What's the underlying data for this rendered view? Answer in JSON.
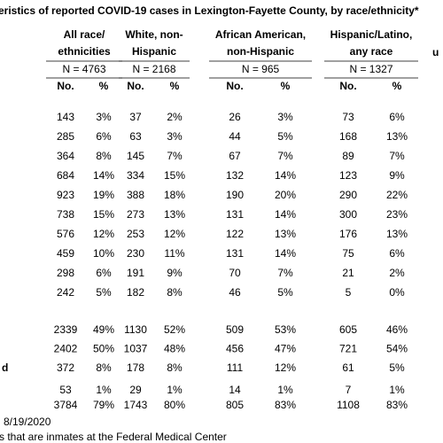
{
  "title": "eristics of reported COVID-19 cases in Lexington-Fayette County, by race/ethnicity*",
  "groups": [
    {
      "header": [
        "All race/",
        "ethnicities"
      ],
      "n": "N = 4763"
    },
    {
      "header": [
        "White, non-",
        "Hispanic"
      ],
      "n": "N = 2168"
    },
    {
      "header": [
        "African American,",
        "non-Hispanic"
      ],
      "n": "N = 965"
    },
    {
      "header": [
        "Hispanic/Latino,",
        "any race"
      ],
      "n": "N = 1327"
    }
  ],
  "right_fragment": "u",
  "subheaders": [
    "No.",
    "%"
  ],
  "row_fragment": "d",
  "rows": [
    [
      "143",
      "3%",
      "37",
      "2%",
      "26",
      "3%",
      "73",
      "6%"
    ],
    [
      "285",
      "6%",
      "63",
      "3%",
      "44",
      "5%",
      "168",
      "13%"
    ],
    [
      "364",
      "8%",
      "145",
      "7%",
      "67",
      "7%",
      "89",
      "7%"
    ],
    [
      "684",
      "14%",
      "334",
      "15%",
      "132",
      "14%",
      "123",
      "9%"
    ],
    [
      "923",
      "19%",
      "388",
      "18%",
      "190",
      "20%",
      "290",
      "22%"
    ],
    [
      "738",
      "15%",
      "273",
      "13%",
      "131",
      "14%",
      "300",
      "23%"
    ],
    [
      "576",
      "12%",
      "253",
      "12%",
      "122",
      "13%",
      "176",
      "13%"
    ],
    [
      "459",
      "10%",
      "230",
      "11%",
      "131",
      "14%",
      "75",
      "6%"
    ],
    [
      "298",
      "6%",
      "191",
      "9%",
      "70",
      "7%",
      "21",
      "2%"
    ],
    [
      "242",
      "5%",
      "182",
      "8%",
      "46",
      "5%",
      "5",
      "0%"
    ],
    [
      "2339",
      "49%",
      "1130",
      "52%",
      "509",
      "53%",
      "605",
      "46%"
    ],
    [
      "2402",
      "50%",
      "1037",
      "48%",
      "456",
      "47%",
      "721",
      "54%"
    ],
    [
      "372",
      "8%",
      "178",
      "8%",
      "111",
      "12%",
      "61",
      "5%"
    ],
    [
      "53",
      "1%",
      "29",
      "1%",
      "14",
      "1%",
      "7",
      "1%"
    ],
    [
      "3784",
      "79%",
      "1743",
      "80%",
      "805",
      "83%",
      "1108",
      "83%"
    ]
  ],
  "footnotes": [
    "8/19/2020",
    "s that are inmates at the Federal Medical Center"
  ]
}
